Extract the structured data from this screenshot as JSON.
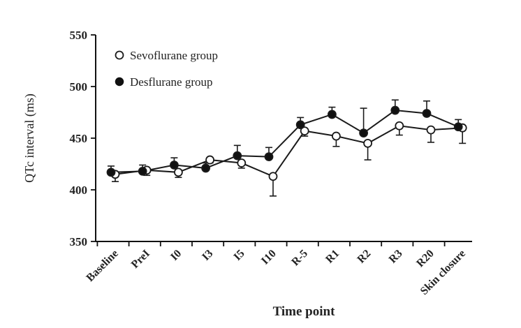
{
  "chart_data": {
    "type": "line",
    "title": "",
    "xlabel": "Time point",
    "ylabel": "QTc  interval (ms)",
    "ylim": [
      350,
      550
    ],
    "yticks": [
      350,
      400,
      450,
      500,
      550
    ],
    "categories": [
      "Baseline",
      "PreI",
      "I0",
      "I3",
      "I5",
      "I10",
      "R-5",
      "R1",
      "R2",
      "R3",
      "R20",
      "Skin closure"
    ],
    "legend_position": "top-left",
    "series": [
      {
        "name": "Sevoflurane group",
        "marker": "open-circle",
        "values": [
          415,
          419,
          417,
          429,
          426,
          413,
          457,
          452,
          445,
          462,
          458,
          460
        ],
        "errors": [
          7,
          5,
          5,
          3,
          5,
          19,
          5,
          10,
          16,
          9,
          12,
          15
        ]
      },
      {
        "name": "Desflurane group",
        "marker": "filled-circle",
        "values": [
          417,
          418,
          424,
          421,
          433,
          432,
          463,
          473,
          455,
          477,
          474,
          461
        ],
        "errors": [
          6,
          6,
          7,
          5,
          10,
          9,
          7,
          7,
          24,
          10,
          12,
          7
        ]
      }
    ],
    "colors": {
      "line": "#1a1a1a",
      "open_fill": "#ffffff",
      "filled_fill": "#111111"
    }
  }
}
